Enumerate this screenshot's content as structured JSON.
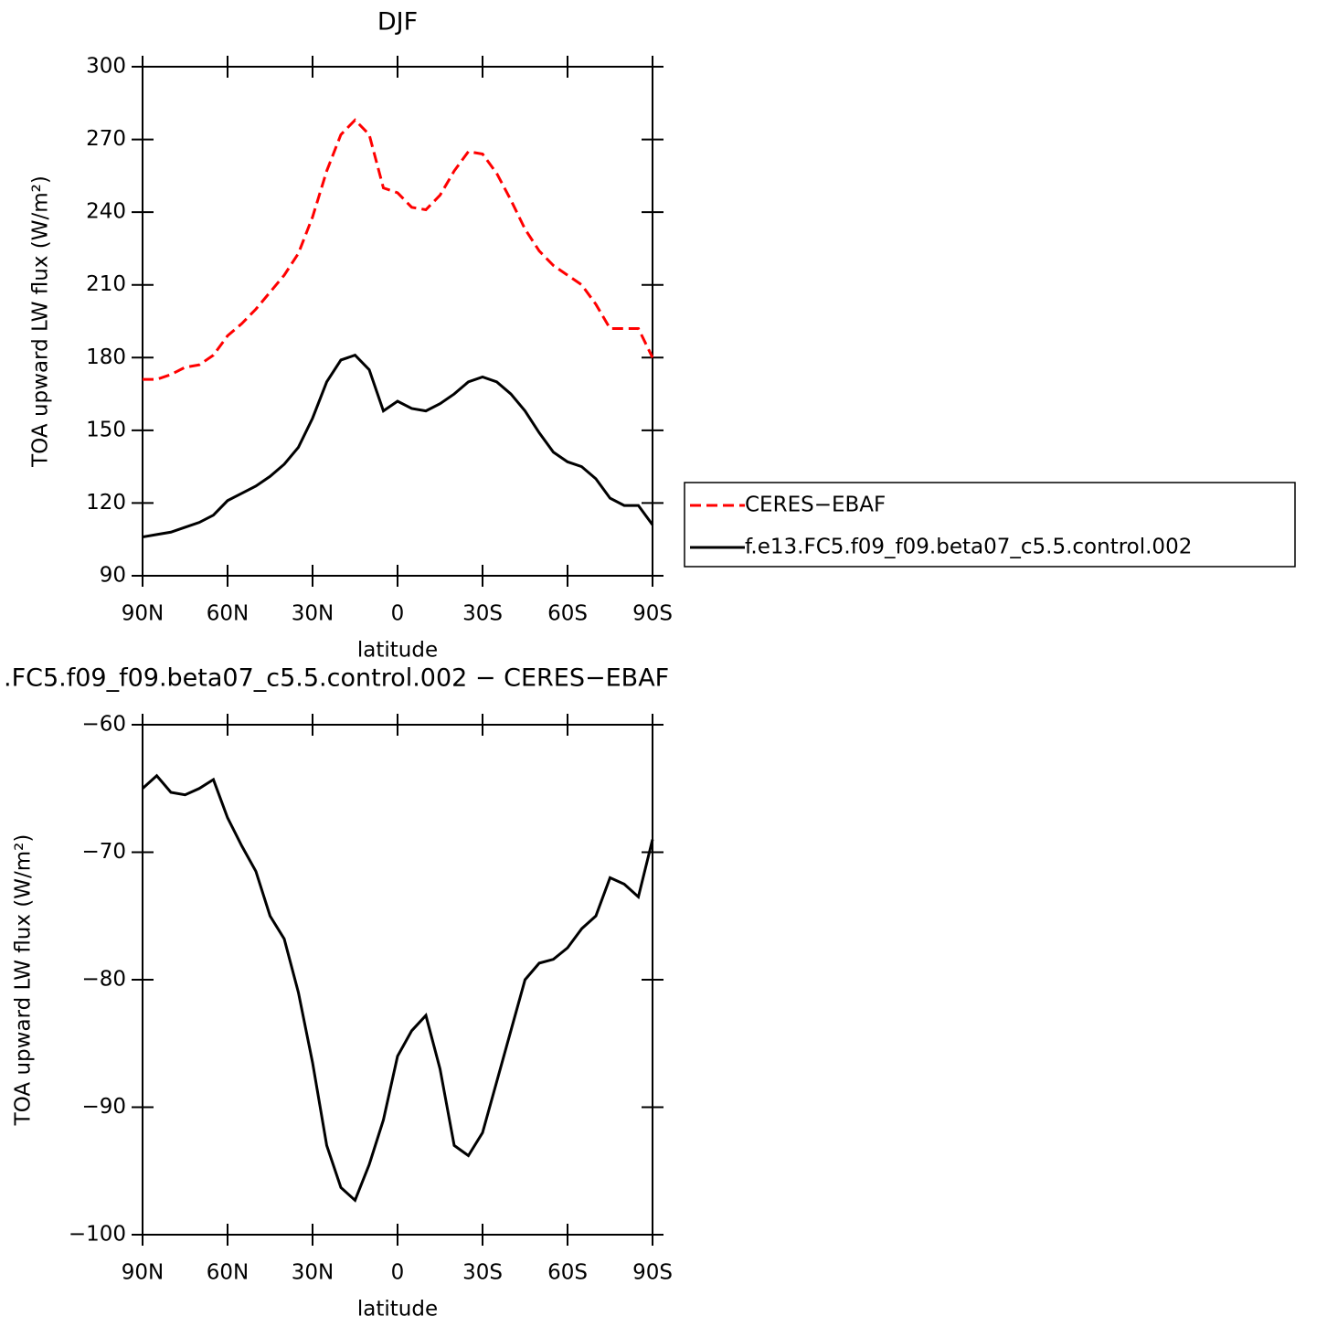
{
  "chart_data": [
    {
      "type": "line",
      "title": "DJF",
      "x_label": "latitude",
      "y_label": "TOA upward LW flux (W/m²)",
      "x": [
        90,
        85,
        80,
        75,
        70,
        65,
        60,
        55,
        50,
        45,
        40,
        35,
        30,
        25,
        20,
        15,
        10,
        5,
        0,
        -5,
        -10,
        -15,
        -20,
        -25,
        -30,
        -35,
        -40,
        -45,
        -50,
        -55,
        -60,
        -65,
        -70,
        -75,
        -80,
        -85,
        -90
      ],
      "xlim": [
        90,
        -90
      ],
      "xticks": [
        {
          "value": 90,
          "label": "90N"
        },
        {
          "value": 60,
          "label": "60N"
        },
        {
          "value": 30,
          "label": "30N"
        },
        0,
        {
          "value": -30,
          "label": "30S"
        },
        {
          "value": -60,
          "label": "60S"
        },
        {
          "value": -90,
          "label": "90S"
        }
      ],
      "ylim": [
        90,
        300
      ],
      "yticks": [
        90,
        120,
        150,
        180,
        210,
        240,
        270,
        300
      ],
      "legend": "right",
      "series": [
        {
          "name": "CERES−EBAF",
          "color": "#ff0000",
          "dashed": true,
          "values": [
            171,
            171,
            173,
            176,
            177,
            181,
            189,
            194,
            200,
            207,
            214,
            223,
            238,
            257,
            272,
            278,
            272,
            250,
            248,
            242,
            241,
            247,
            257,
            265,
            264,
            256,
            245,
            233,
            224,
            218,
            214,
            210,
            202,
            192,
            192,
            192,
            180
          ]
        },
        {
          "name": "f.e13.FC5.f09_f09.beta07_c5.5.control.002",
          "color": "#000000",
          "dashed": false,
          "values": [
            106,
            107,
            108,
            110,
            112,
            115,
            121,
            124,
            127,
            131,
            136,
            143,
            155,
            170,
            179,
            181,
            175,
            158,
            162,
            159,
            158,
            161,
            165,
            170,
            172,
            170,
            165,
            158,
            149,
            141,
            137,
            135,
            130,
            122,
            119,
            119,
            111
          ]
        }
      ]
    },
    {
      "type": "line",
      "title": ".FC5.f09_f09.beta07_c5.5.control.002 − CERES−EBAF",
      "x_label": "latitude",
      "y_label": "TOA upward LW flux (W/m²)",
      "x": [
        90,
        85,
        80,
        75,
        70,
        65,
        60,
        55,
        50,
        45,
        40,
        35,
        30,
        25,
        20,
        15,
        10,
        5,
        0,
        -5,
        -10,
        -15,
        -20,
        -25,
        -30,
        -35,
        -40,
        -45,
        -50,
        -55,
        -60,
        -65,
        -70,
        -75,
        -80,
        -85,
        -90
      ],
      "xlim": [
        90,
        -90
      ],
      "xticks": [
        {
          "value": 90,
          "label": "90N"
        },
        {
          "value": 60,
          "label": "60N"
        },
        {
          "value": 30,
          "label": "30N"
        },
        0,
        {
          "value": -30,
          "label": "30S"
        },
        {
          "value": -60,
          "label": "60S"
        },
        {
          "value": -90,
          "label": "90S"
        }
      ],
      "ylim": [
        -100,
        -60
      ],
      "yticks": [
        {
          "value": -100,
          "label": "−100"
        },
        {
          "value": -90,
          "label": "−90"
        },
        {
          "value": -80,
          "label": "−80"
        },
        {
          "value": -70,
          "label": "−70"
        },
        {
          "value": -60,
          "label": "−60"
        }
      ],
      "series": [
        {
          "color": "#000000",
          "dashed": false,
          "values": [
            -65,
            -64,
            -65.3,
            -65.5,
            -65,
            -64.3,
            -67.3,
            -69.5,
            -71.5,
            -75,
            -76.8,
            -81,
            -86.5,
            -93,
            -96.3,
            -97.3,
            -94.5,
            -91,
            -86,
            -84,
            -82.8,
            -87,
            -93,
            -93.8,
            -92,
            -88,
            -84,
            -80,
            -78.7,
            -78.4,
            -77.5,
            -76,
            -75,
            -72,
            -72.5,
            -73.5,
            -69
          ]
        }
      ]
    }
  ]
}
